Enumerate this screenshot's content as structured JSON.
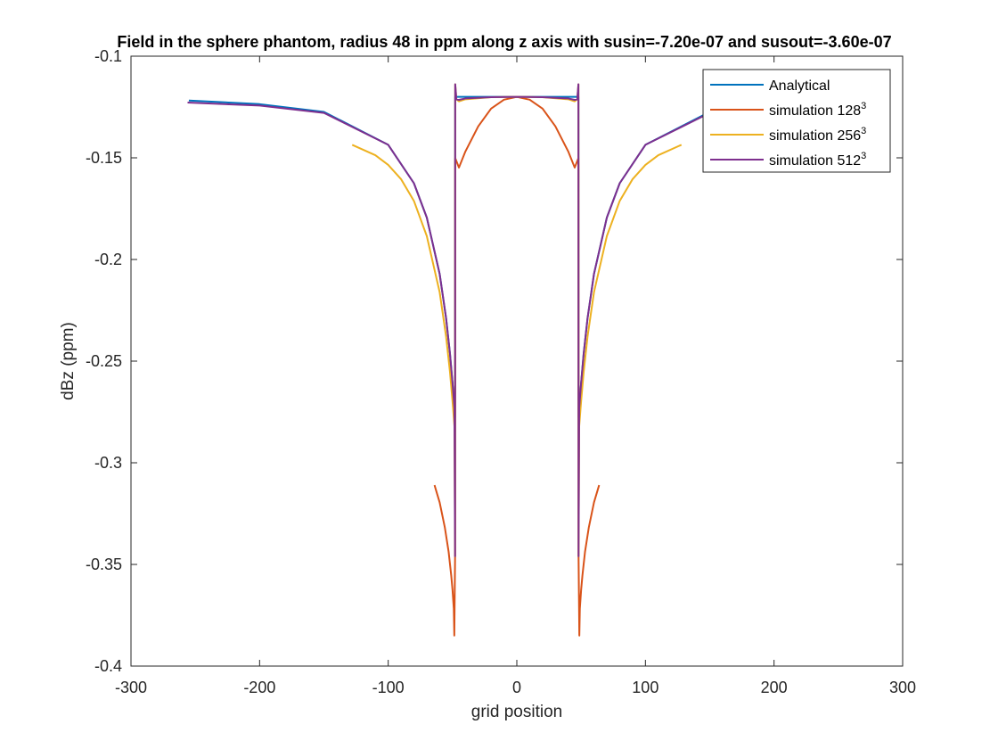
{
  "chart_data": {
    "type": "line",
    "title": "Field in the sphere phantom, radius 48 in ppm along z axis with susin=-7.20e-07 and susout=-3.60e-07",
    "xlabel": "grid position",
    "ylabel": "dBz (ppm)",
    "xlim": [
      -300,
      300
    ],
    "ylim": [
      -0.4,
      -0.1
    ],
    "xticks": [
      "-300",
      "-200",
      "-100",
      "0",
      "100",
      "200",
      "300"
    ],
    "yticks": [
      "-0.1",
      "-0.15",
      "-0.2",
      "-0.25",
      "-0.3",
      "-0.35",
      "-0.4"
    ],
    "grid": false,
    "legend_position": "top-right",
    "legend": [
      {
        "label": "Analytical",
        "sup": ""
      },
      {
        "label": "simulation 128",
        "sup": "3"
      },
      {
        "label": "simulation 256",
        "sup": "3"
      },
      {
        "label": "simulation 512",
        "sup": "3"
      }
    ],
    "series": [
      {
        "name": "Analytical",
        "color": "#0072BD",
        "x": [
          -255,
          -200,
          -150,
          -100,
          -80,
          -70,
          -60,
          -55,
          -52,
          -50,
          -49,
          -48.5,
          -48,
          -47.9,
          0,
          47.9,
          48,
          48.5,
          49,
          50,
          52,
          55,
          60,
          70,
          80,
          100,
          150,
          180
        ],
        "y": [
          -0.1218,
          -0.1236,
          -0.1274,
          -0.1436,
          -0.1625,
          -0.1794,
          -0.2071,
          -0.2289,
          -0.2462,
          -0.2607,
          -0.2688,
          -0.2731,
          -0.2776,
          -0.12,
          -0.12,
          -0.12,
          -0.2776,
          -0.2731,
          -0.2688,
          -0.2607,
          -0.2462,
          -0.2289,
          -0.2071,
          -0.1794,
          -0.1625,
          -0.1436,
          -0.1274,
          -0.125
        ]
      },
      {
        "name": "simulation 128",
        "color": "#D95319",
        "x": [
          -64,
          -60,
          -56,
          -53,
          -51,
          -50,
          -49,
          -48.6,
          -48,
          -47.9,
          -45,
          -40,
          -30,
          -20,
          -10,
          0,
          10,
          20,
          30,
          40,
          45,
          47.9,
          48,
          48.6,
          49,
          50,
          51,
          53,
          56,
          60,
          64
        ],
        "y": [
          -0.311,
          -0.3195,
          -0.3317,
          -0.3439,
          -0.3555,
          -0.3625,
          -0.3718,
          -0.385,
          -0.346,
          -0.1501,
          -0.1548,
          -0.1469,
          -0.1345,
          -0.1258,
          -0.1214,
          -0.12,
          -0.1214,
          -0.1258,
          -0.1345,
          -0.1469,
          -0.1548,
          -0.1501,
          -0.346,
          -0.385,
          -0.3718,
          -0.3625,
          -0.3555,
          -0.3439,
          -0.3317,
          -0.3195,
          -0.311
        ]
      },
      {
        "name": "simulation 256",
        "color": "#EDB120",
        "x": [
          -128,
          -110,
          -100,
          -90,
          -80,
          -70,
          -60,
          -55,
          -52,
          -50,
          -49,
          -48.5,
          -48,
          -47.9,
          -47,
          -45,
          -40,
          -20,
          0,
          20,
          40,
          45,
          47,
          47.9,
          48,
          48.5,
          49,
          50,
          52,
          55,
          60,
          70,
          80,
          90,
          100,
          110,
          128
        ],
        "y": [
          -0.1436,
          -0.1487,
          -0.1535,
          -0.1605,
          -0.1712,
          -0.1885,
          -0.2161,
          -0.2379,
          -0.2552,
          -0.2697,
          -0.2778,
          -0.2821,
          -0.346,
          -0.1138,
          -0.1212,
          -0.1222,
          -0.1212,
          -0.1202,
          -0.12,
          -0.1202,
          -0.1212,
          -0.1222,
          -0.1212,
          -0.1138,
          -0.346,
          -0.2821,
          -0.2778,
          -0.2697,
          -0.2552,
          -0.2379,
          -0.2161,
          -0.1885,
          -0.1712,
          -0.1605,
          -0.1535,
          -0.1487,
          -0.1436
        ]
      },
      {
        "name": "simulation 512",
        "color": "#7E2F8E",
        "x": [
          -256,
          -200,
          -150,
          -100,
          -80,
          -70,
          -60,
          -55,
          -52,
          -50,
          -49,
          -48.5,
          -48,
          -47.9,
          -47,
          -45,
          -40,
          -20,
          0,
          20,
          40,
          45,
          47,
          47.9,
          48,
          48.5,
          49,
          50,
          52,
          55,
          60,
          70,
          80,
          100,
          150,
          170
        ],
        "y": [
          -0.1228,
          -0.1243,
          -0.1279,
          -0.1436,
          -0.1625,
          -0.1794,
          -0.2071,
          -0.2289,
          -0.2462,
          -0.2607,
          -0.2688,
          -0.2731,
          -0.346,
          -0.1138,
          -0.1212,
          -0.1215,
          -0.1208,
          -0.1202,
          -0.12,
          -0.1202,
          -0.1208,
          -0.1215,
          -0.1212,
          -0.1138,
          -0.346,
          -0.2731,
          -0.2688,
          -0.2607,
          -0.2462,
          -0.2289,
          -0.2071,
          -0.1794,
          -0.1625,
          -0.1436,
          -0.1279,
          -0.1265
        ]
      }
    ]
  }
}
